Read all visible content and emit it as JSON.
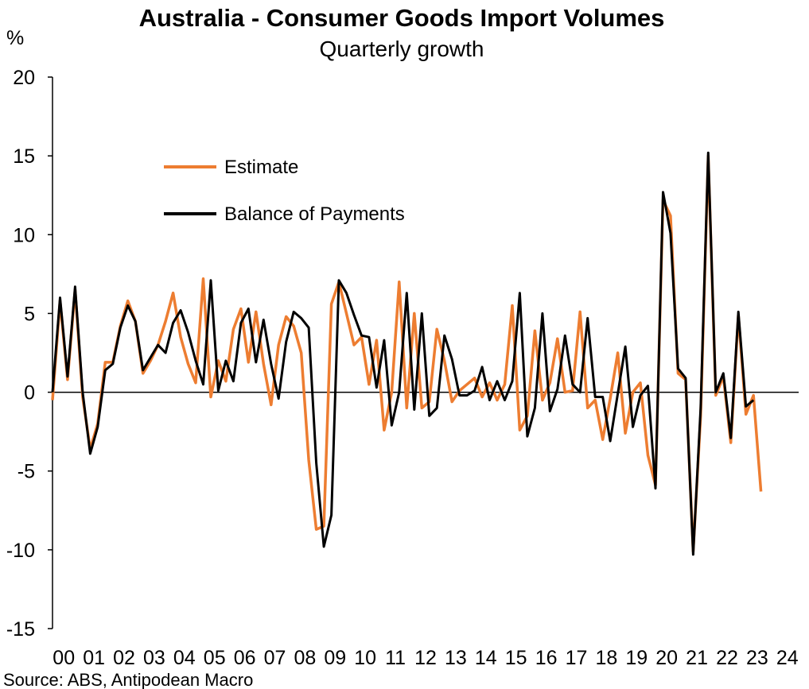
{
  "chart_data": {
    "type": "line",
    "title": "Australia - Consumer Goods Import Volumes",
    "subtitle": "Quarterly growth",
    "ylabel": "%",
    "source": "Source: ABS, Antipodean Macro",
    "ylim": [
      -15,
      20
    ],
    "yticks": [
      20,
      15,
      10,
      5,
      0,
      -5,
      -10,
      -15
    ],
    "ytick_labels": [
      "20",
      "15",
      "10",
      "5",
      "0",
      "-5",
      "-10",
      "-15"
    ],
    "xtick_labels": [
      "00",
      "01",
      "02",
      "03",
      "04",
      "05",
      "06",
      "07",
      "08",
      "09",
      "10",
      "11",
      "12",
      "13",
      "14",
      "15",
      "16",
      "17",
      "18",
      "19",
      "20",
      "21",
      "22",
      "23",
      "24"
    ],
    "x_start_year": 2000,
    "grid": false,
    "legend_position": "upper-left",
    "series": [
      {
        "name": "Estimate",
        "color": "#ED7D31",
        "values": [
          -0.5,
          5.8,
          0.8,
          6.5,
          -0.3,
          -3.6,
          -2.0,
          1.9,
          1.9,
          4.2,
          5.8,
          4.5,
          1.2,
          2.0,
          3.0,
          4.5,
          6.3,
          3.5,
          1.8,
          0.6,
          7.2,
          -0.3,
          2.0,
          0.7,
          4.0,
          5.3,
          1.9,
          5.1,
          1.8,
          -0.8,
          3.0,
          4.8,
          4.2,
          2.5,
          -4.3,
          -8.7,
          -8.5,
          5.6,
          7.0,
          5.0,
          3.0,
          3.5,
          0.5,
          3.3,
          -2.4,
          0.0,
          7.0,
          -1.0,
          5.0,
          -1.0,
          -0.6,
          4.0,
          2.0,
          -0.6,
          0.1,
          0.5,
          0.9,
          -0.3,
          0.6,
          -0.5,
          0.5,
          5.5,
          -2.4,
          -1.5,
          3.9,
          -0.5,
          0.6,
          3.4,
          0.0,
          0.1,
          5.1,
          -1.0,
          -0.5,
          -3.0,
          -0.4,
          2.5,
          -2.6,
          0.0,
          0.6,
          -4.0,
          -5.9,
          12.2,
          11.2,
          1.2,
          0.8,
          -10.1,
          -1.5,
          15.0,
          -0.2,
          1.0,
          -3.2,
          4.9,
          -1.4,
          -0.2,
          -6.3
        ]
      },
      {
        "name": "Balance of Payments",
        "color": "#000000",
        "values": [
          0.0,
          6.0,
          1.0,
          6.7,
          0.0,
          -3.9,
          -2.2,
          1.4,
          1.8,
          4.1,
          5.5,
          4.5,
          1.4,
          2.2,
          3.0,
          2.5,
          4.4,
          5.2,
          3.8,
          2.0,
          0.5,
          7.1,
          0.1,
          2.0,
          0.7,
          4.4,
          5.3,
          1.9,
          4.6,
          1.8,
          -0.4,
          3.2,
          5.1,
          4.7,
          4.1,
          -4.5,
          -9.8,
          -7.8,
          7.1,
          6.3,
          4.9,
          3.6,
          3.5,
          0.3,
          3.3,
          -2.1,
          0.0,
          6.3,
          -1.1,
          5.0,
          -1.5,
          -1.0,
          3.6,
          2.1,
          -0.2,
          -0.2,
          0.1,
          1.6,
          -0.5,
          0.7,
          -0.5,
          0.7,
          6.3,
          -2.8,
          -1.0,
          5.0,
          -1.2,
          0.2,
          3.6,
          0.5,
          0.0,
          4.7,
          -0.3,
          -0.3,
          -3.1,
          -0.1,
          2.9,
          -2.2,
          -0.2,
          0.4,
          -6.1,
          12.7,
          10.1,
          1.5,
          0.9,
          -10.3,
          -1.0,
          15.2,
          0.0,
          1.2,
          -2.9,
          5.1,
          -0.9,
          -0.5
        ]
      }
    ]
  }
}
